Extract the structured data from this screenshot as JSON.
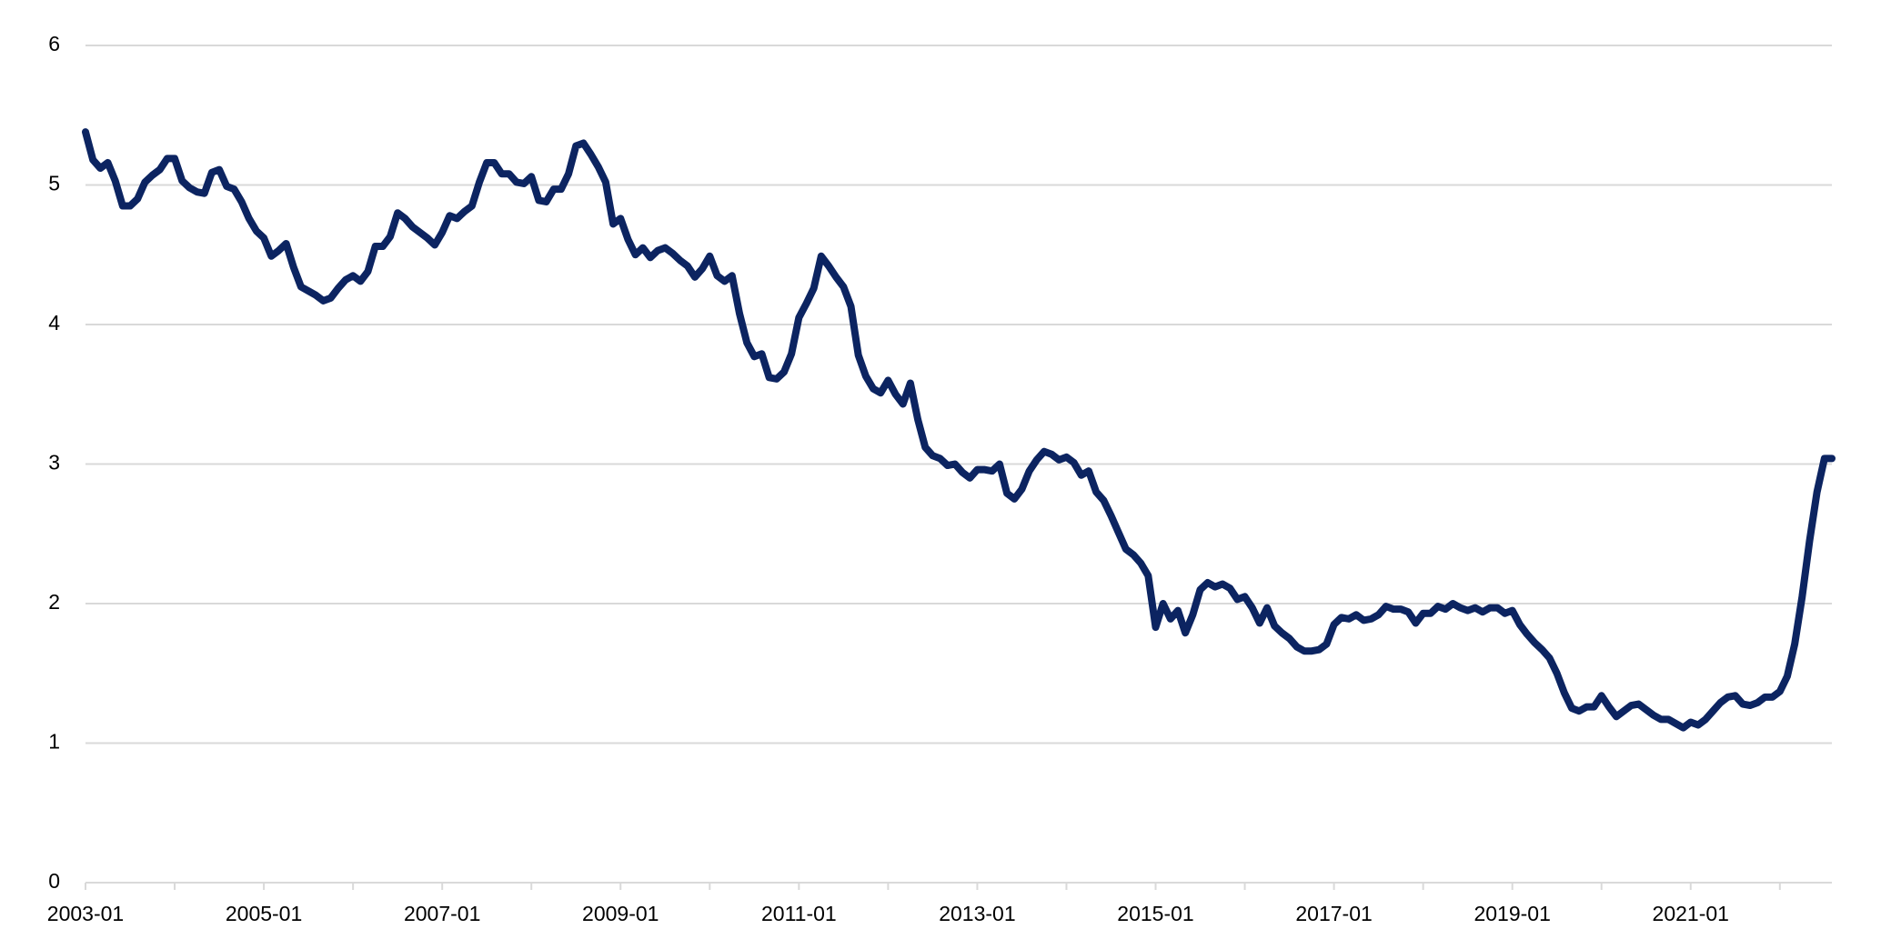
{
  "chart_data": {
    "type": "line",
    "categories": [
      "2003-01",
      null,
      null,
      null,
      null,
      null,
      null,
      null,
      null,
      null,
      null,
      null,
      null,
      null,
      null,
      null,
      null,
      null,
      null,
      null,
      null,
      null,
      null,
      null,
      "2005-01",
      null,
      null,
      null,
      null,
      null,
      null,
      null,
      null,
      null,
      null,
      null,
      null,
      null,
      null,
      null,
      null,
      null,
      null,
      null,
      null,
      null,
      null,
      null,
      "2007-01",
      null,
      null,
      null,
      null,
      null,
      null,
      null,
      null,
      null,
      null,
      null,
      null,
      null,
      null,
      null,
      null,
      null,
      null,
      null,
      null,
      null,
      null,
      null,
      "2009-01",
      null,
      null,
      null,
      null,
      null,
      null,
      null,
      null,
      null,
      null,
      null,
      null,
      null,
      null,
      null,
      null,
      null,
      null,
      null,
      null,
      null,
      null,
      null,
      "2011-01",
      null,
      null,
      null,
      null,
      null,
      null,
      null,
      null,
      null,
      null,
      null,
      null,
      null,
      null,
      null,
      null,
      null,
      null,
      null,
      null,
      null,
      null,
      null,
      "2013-01",
      null,
      null,
      null,
      null,
      null,
      null,
      null,
      null,
      null,
      null,
      null,
      null,
      null,
      null,
      null,
      null,
      null,
      null,
      null,
      null,
      null,
      null,
      null,
      "2015-01",
      null,
      null,
      null,
      null,
      null,
      null,
      null,
      null,
      null,
      null,
      null,
      null,
      null,
      null,
      null,
      null,
      null,
      null,
      null,
      null,
      null,
      null,
      null,
      "2017-01",
      null,
      null,
      null,
      null,
      null,
      null,
      null,
      null,
      null,
      null,
      null,
      null,
      null,
      null,
      null,
      null,
      null,
      null,
      null,
      null,
      null,
      null,
      null,
      "2019-01",
      null,
      null,
      null,
      null,
      null,
      null,
      null,
      null,
      null,
      null,
      null,
      null,
      null,
      null,
      null,
      null,
      null,
      null,
      null,
      null,
      null,
      null,
      null,
      "2021-01",
      null,
      null,
      null,
      null,
      null,
      null,
      null,
      null,
      null,
      null,
      null,
      null,
      null,
      null,
      null,
      null,
      null,
      null,
      null
    ],
    "values": [
      5.38,
      5.18,
      5.12,
      5.16,
      5.03,
      4.85,
      4.85,
      4.9,
      5.02,
      5.07,
      5.11,
      5.19,
      5.19,
      5.03,
      4.98,
      4.95,
      4.94,
      5.09,
      5.11,
      4.99,
      4.97,
      4.88,
      4.76,
      4.67,
      4.62,
      4.49,
      4.53,
      4.58,
      4.41,
      4.27,
      4.24,
      4.21,
      4.17,
      4.19,
      4.26,
      4.32,
      4.35,
      4.31,
      4.38,
      4.56,
      4.56,
      4.63,
      4.8,
      4.76,
      4.7,
      4.66,
      4.62,
      4.57,
      4.66,
      4.78,
      4.76,
      4.81,
      4.85,
      5.02,
      5.16,
      5.16,
      5.08,
      5.08,
      5.02,
      5.01,
      5.06,
      4.89,
      4.88,
      4.97,
      4.97,
      5.08,
      5.28,
      5.3,
      5.22,
      5.13,
      5.02,
      4.72,
      4.76,
      4.61,
      4.5,
      4.55,
      4.48,
      4.53,
      4.55,
      4.51,
      4.46,
      4.42,
      4.34,
      4.4,
      4.49,
      4.35,
      4.31,
      4.35,
      4.08,
      3.87,
      3.77,
      3.79,
      3.62,
      3.61,
      3.66,
      3.79,
      4.05,
      4.15,
      4.26,
      4.49,
      4.42,
      4.34,
      4.27,
      4.13,
      3.78,
      3.63,
      3.54,
      3.51,
      3.6,
      3.5,
      3.43,
      3.58,
      3.32,
      3.12,
      3.06,
      3.04,
      2.99,
      3.0,
      2.94,
      2.9,
      2.96,
      2.96,
      2.95,
      3.0,
      2.79,
      2.75,
      2.82,
      2.95,
      3.03,
      3.09,
      3.07,
      3.03,
      3.05,
      3.01,
      2.92,
      2.95,
      2.8,
      2.74,
      2.63,
      2.51,
      2.39,
      2.35,
      2.29,
      2.2,
      1.83,
      2.0,
      1.89,
      1.95,
      1.79,
      1.92,
      2.1,
      2.15,
      2.12,
      2.14,
      2.11,
      2.03,
      2.05,
      1.97,
      1.86,
      1.97,
      1.84,
      1.79,
      1.75,
      1.69,
      1.66,
      1.66,
      1.67,
      1.71,
      1.85,
      1.9,
      1.89,
      1.92,
      1.88,
      1.89,
      1.92,
      1.98,
      1.96,
      1.96,
      1.94,
      1.86,
      1.93,
      1.93,
      1.98,
      1.96,
      2.0,
      1.97,
      1.95,
      1.97,
      1.94,
      1.97,
      1.97,
      1.93,
      1.95,
      1.85,
      1.78,
      1.72,
      1.67,
      1.61,
      1.5,
      1.36,
      1.25,
      1.23,
      1.26,
      1.26,
      1.34,
      1.26,
      1.19,
      1.23,
      1.27,
      1.28,
      1.24,
      1.2,
      1.17,
      1.17,
      1.14,
      1.11,
      1.15,
      1.13,
      1.17,
      1.23,
      1.29,
      1.33,
      1.34,
      1.28,
      1.27,
      1.29,
      1.33,
      1.33,
      1.37,
      1.48,
      1.71,
      2.05,
      2.45,
      2.8,
      3.04,
      3.04
    ],
    "color": "#0c2461",
    "ylim": [
      0,
      6
    ],
    "yticks": [
      0,
      1,
      2,
      3,
      4,
      5,
      6
    ],
    "grid": true
  }
}
